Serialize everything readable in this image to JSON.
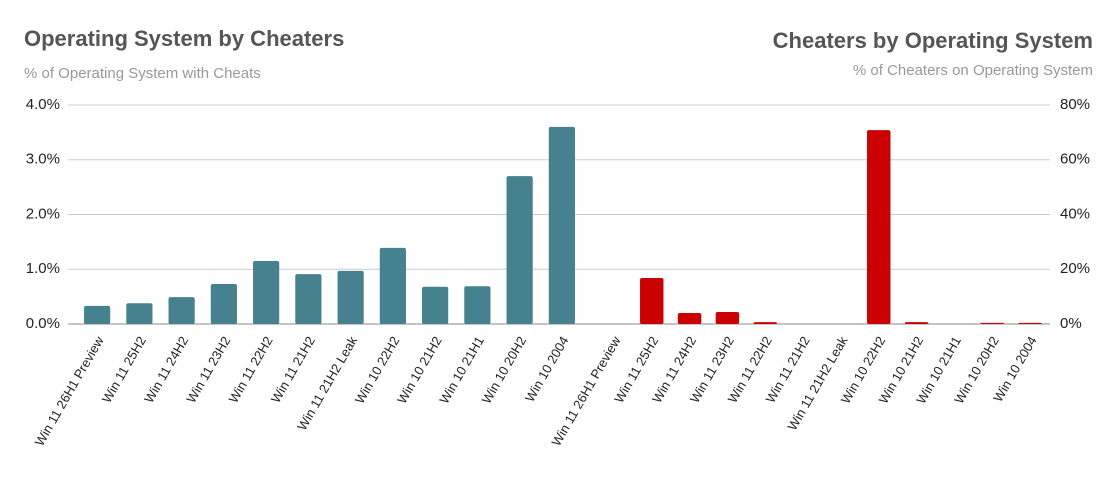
{
  "chart_data": [
    {
      "type": "bar",
      "title": "Operating System by Cheaters",
      "subtitle": "% of Operating System with Cheats",
      "categories": [
        "Win 11 26H1 Preview",
        "Win 11 25H2",
        "Win 11 24H2",
        "Win 11 23H2",
        "Win 11 22H2",
        "Win 11 21H2",
        "Win 11 21H2 Leak",
        "Win 10 22H2",
        "Win 10 21H2",
        "Win 10 21H1",
        "Win 10 20H2",
        "Win 10 2004"
      ],
      "values": [
        0.33,
        0.38,
        0.49,
        0.73,
        1.15,
        0.91,
        0.97,
        1.39,
        0.68,
        0.69,
        2.7,
        3.6
      ],
      "color": "#45818e",
      "ylim": [
        0,
        4
      ],
      "yticks": [
        {
          "value": 0,
          "label": "0.0%"
        },
        {
          "value": 1,
          "label": "1.0%"
        },
        {
          "value": 2,
          "label": "2.0%"
        },
        {
          "value": 3,
          "label": "3.0%"
        },
        {
          "value": 4,
          "label": "4.0%"
        }
      ],
      "grid": true
    },
    {
      "type": "bar",
      "title": "Cheaters by Operating System",
      "subtitle": "% of Cheaters on Operating System",
      "categories": [
        "Win 11 26H1 Preview",
        "Win 11 25H2",
        "Win 11 24H2",
        "Win 11 23H2",
        "Win 11 22H2",
        "Win 11 21H2",
        "Win 11 21H2 Leak",
        "Win 10 22H2",
        "Win 10 21H2",
        "Win 10 21H1",
        "Win 10 20H2",
        "Win 10 2004"
      ],
      "values": [
        0,
        16.8,
        4.0,
        4.4,
        0.7,
        0,
        0,
        70.8,
        0.7,
        0,
        0.4,
        0.4
      ],
      "color": "#cc0000",
      "ylim": [
        0,
        80
      ],
      "yticks": [
        {
          "value": 0,
          "label": "0%"
        },
        {
          "value": 20,
          "label": "20%"
        },
        {
          "value": 40,
          "label": "40%"
        },
        {
          "value": 60,
          "label": "60%"
        },
        {
          "value": 80,
          "label": "80%"
        }
      ],
      "grid": true
    }
  ]
}
